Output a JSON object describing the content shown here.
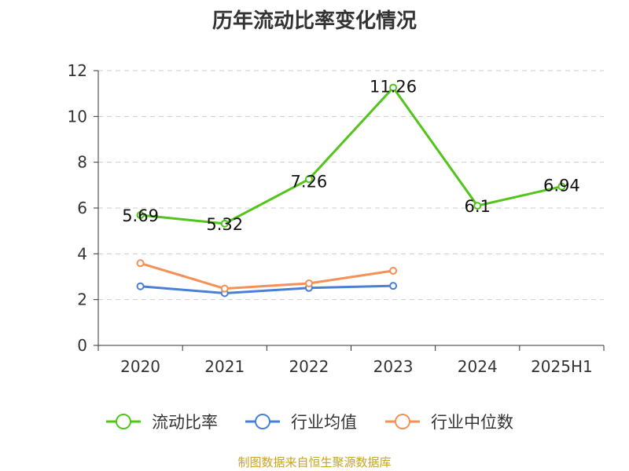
{
  "chart_data": {
    "type": "line",
    "title": "历年流动比率变化情况",
    "categories": [
      "2020",
      "2021",
      "2022",
      "2023",
      "2024",
      "2025H1"
    ],
    "ylim": [
      0,
      12
    ],
    "yticks": [
      0,
      2,
      4,
      6,
      8,
      10,
      12
    ],
    "grid": true,
    "legend_position": "bottom",
    "series": [
      {
        "name": "流动比率",
        "color": "#52c41a",
        "values": [
          5.69,
          5.32,
          7.26,
          11.26,
          6.1,
          6.94
        ],
        "labels": [
          "5.69",
          "5.32",
          "7.26",
          "11.26",
          "6.1",
          "6.94"
        ]
      },
      {
        "name": "行业均值",
        "color": "#4a7fd8",
        "values": [
          2.58,
          2.28,
          2.51,
          2.6,
          null,
          null
        ]
      },
      {
        "name": "行业中位数",
        "color": "#f59056",
        "values": [
          3.59,
          2.48,
          2.71,
          3.26,
          null,
          null
        ]
      }
    ]
  },
  "source": "制图数据来自恒生聚源数据库"
}
